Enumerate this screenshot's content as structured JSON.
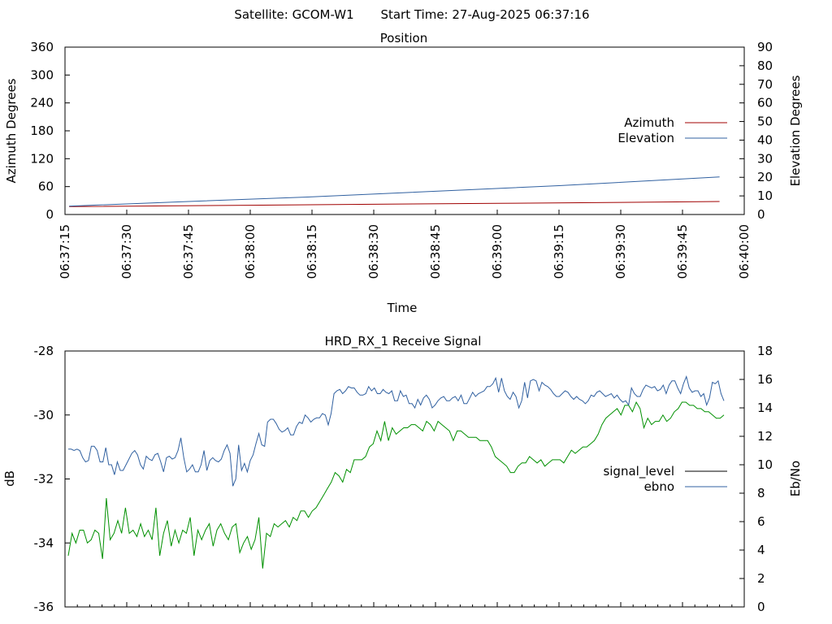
{
  "header": {
    "satellite": "Satellite: GCOM-W1",
    "start_time": "Start Time: 27-Aug-2025 06:37:16"
  },
  "chart_data": [
    {
      "type": "line",
      "title": "Position",
      "xlabel": "Time",
      "ylabel": "Azimuth Degrees",
      "y2label": "Elevation Degrees",
      "xlim": [
        "06:37:15",
        "06:40:00"
      ],
      "ylim": [
        0,
        360
      ],
      "y2lim": [
        0,
        90
      ],
      "xticks": [
        "06:37:15",
        "06:37:30",
        "06:37:45",
        "06:38:00",
        "06:38:15",
        "06:38:30",
        "06:38:45",
        "06:39:00",
        "06:39:15",
        "06:39:30",
        "06:39:45",
        "06:40:00"
      ],
      "yticks": [
        0,
        60,
        120,
        180,
        240,
        300,
        360
      ],
      "y2ticks": [
        0,
        10,
        20,
        30,
        40,
        50,
        60,
        70,
        80,
        90
      ],
      "legend": "center-right",
      "grid": false,
      "series": [
        {
          "name": "Azimuth",
          "axis": "y",
          "color": "#a00000",
          "x": [
            "06:37:16",
            "06:38:00",
            "06:38:30",
            "06:39:00",
            "06:39:30",
            "06:39:54"
          ],
          "values": [
            17,
            20,
            22,
            24,
            26,
            28
          ]
        },
        {
          "name": "Elevation",
          "axis": "y2",
          "color": "#3060a0",
          "x": [
            "06:37:16",
            "06:37:45",
            "06:38:15",
            "06:38:45",
            "06:39:15",
            "06:39:54"
          ],
          "values": [
            4.5,
            7,
            9.5,
            12.5,
            15.5,
            20.2
          ]
        }
      ]
    },
    {
      "type": "line",
      "title": "HRD_RX_1 Receive Signal",
      "ylabel": "dB",
      "y2label": "Eb/No",
      "ylim": [
        -36,
        -28
      ],
      "y2lim": [
        0,
        18
      ],
      "yticks": [
        -36,
        -34,
        -32,
        -30,
        -28
      ],
      "y2ticks": [
        0,
        2,
        4,
        6,
        8,
        10,
        12,
        14,
        16,
        18
      ],
      "legend": "center-right",
      "grid": false,
      "series": [
        {
          "name": "signal_level",
          "axis": "y",
          "color": "#009000",
          "values": [
            -34.4,
            -33.7,
            -34.0,
            -33.6,
            -33.6,
            -34.0,
            -33.9,
            -33.6,
            -33.7,
            -34.5,
            -32.6,
            -33.9,
            -33.7,
            -33.3,
            -33.7,
            -32.9,
            -33.7,
            -33.6,
            -33.8,
            -33.4,
            -33.8,
            -33.6,
            -33.9,
            -32.9,
            -34.4,
            -33.7,
            -33.3,
            -34.1,
            -33.6,
            -34.0,
            -33.6,
            -33.7,
            -33.2,
            -34.4,
            -33.6,
            -33.9,
            -33.6,
            -33.4,
            -34.1,
            -33.6,
            -33.4,
            -33.7,
            -33.9,
            -33.5,
            -33.4,
            -34.3,
            -34.0,
            -33.8,
            -34.2,
            -33.9,
            -33.2,
            -34.8,
            -33.7,
            -33.8,
            -33.4,
            -33.5,
            -33.4,
            -33.3,
            -33.5,
            -33.2,
            -33.3,
            -33.0,
            -33.0,
            -33.2,
            -33.0,
            -32.9,
            -32.7,
            -32.5,
            -32.3,
            -32.1,
            -31.8,
            -31.9,
            -32.1,
            -31.7,
            -31.8,
            -31.4,
            -31.4,
            -31.4,
            -31.3,
            -31.0,
            -30.9,
            -30.5,
            -30.8,
            -30.2,
            -30.8,
            -30.4,
            -30.6,
            -30.5,
            -30.4,
            -30.4,
            -30.3,
            -30.3,
            -30.4,
            -30.5,
            -30.2,
            -30.3,
            -30.5,
            -30.2,
            -30.3,
            -30.4,
            -30.5,
            -30.8,
            -30.5,
            -30.5,
            -30.6,
            -30.7,
            -30.7,
            -30.7,
            -30.8,
            -30.8,
            -30.8,
            -31.0,
            -31.3,
            -31.4,
            -31.5,
            -31.6,
            -31.8,
            -31.8,
            -31.6,
            -31.5,
            -31.5,
            -31.3,
            -31.4,
            -31.5,
            -31.4,
            -31.6,
            -31.5,
            -31.4,
            -31.4,
            -31.4,
            -31.5,
            -31.3,
            -31.1,
            -31.2,
            -31.1,
            -31.0,
            -31.0,
            -30.9,
            -30.8,
            -30.6,
            -30.3,
            -30.1,
            -30.0,
            -29.9,
            -29.8,
            -30.0,
            -29.7,
            -29.7,
            -29.9,
            -29.6,
            -29.8,
            -30.4,
            -30.1,
            -30.3,
            -30.2,
            -30.2,
            -30.0,
            -30.2,
            -30.1,
            -29.9,
            -29.8,
            -29.6,
            -29.6,
            -29.7,
            -29.7,
            -29.8,
            -29.8,
            -29.9,
            -29.9,
            -30.0,
            -30.1,
            -30.1,
            -30.0
          ]
        },
        {
          "name": "ebno",
          "axis": "y2",
          "color": "#3060a0",
          "values": [
            11.1,
            11.1,
            11.0,
            11.1,
            11.0,
            10.5,
            10.2,
            10.3,
            11.3,
            11.3,
            11.0,
            10.2,
            10.2,
            11.2,
            10.0,
            10.0,
            9.3,
            10.2,
            9.6,
            9.6,
            10.0,
            10.4,
            10.8,
            11.0,
            10.7,
            10.0,
            9.7,
            10.6,
            10.4,
            10.3,
            10.7,
            10.8,
            10.2,
            9.5,
            10.5,
            10.6,
            10.4,
            10.5,
            11.0,
            11.9,
            10.5,
            9.5,
            9.7,
            10.0,
            9.5,
            9.5,
            10.0,
            11.0,
            9.6,
            10.3,
            10.5,
            10.3,
            10.2,
            10.4,
            11.0,
            11.4,
            10.8,
            8.5,
            9.0,
            11.4,
            9.6,
            10.1,
            9.5,
            10.3,
            10.7,
            11.5,
            12.2,
            11.4,
            11.3,
            13.0,
            13.2,
            13.2,
            12.9,
            12.5,
            12.3,
            12.4,
            12.6,
            12.1,
            12.1,
            12.7,
            13.0,
            12.9,
            13.5,
            13.3,
            13.0,
            13.2,
            13.3,
            13.3,
            13.6,
            13.5,
            12.8,
            13.6,
            15.0,
            15.2,
            15.3,
            15.0,
            15.2,
            15.5,
            15.4,
            15.4,
            15.1,
            14.9,
            14.9,
            15.0,
            15.5,
            15.2,
            15.4,
            15.0,
            15.0,
            15.3,
            15.1,
            15.0,
            15.2,
            14.5,
            14.5,
            15.2,
            14.8,
            14.9,
            14.3,
            14.3,
            14.0,
            14.6,
            14.2,
            14.7,
            14.9,
            14.6,
            14.0,
            14.2,
            14.5,
            14.7,
            14.8,
            14.5,
            14.5,
            14.7,
            14.8,
            14.5,
            14.9,
            14.3,
            14.3,
            14.7,
            15.1,
            14.8,
            15.0,
            15.1,
            15.2,
            15.5,
            15.5,
            15.7,
            16.1,
            15.1,
            16.1,
            15.2,
            14.8,
            14.6,
            15.1,
            14.8,
            14.0,
            14.5,
            15.8,
            14.7,
            15.9,
            16.0,
            15.9,
            15.2,
            15.8,
            15.6,
            15.5,
            15.3,
            15.0,
            14.8,
            14.8,
            15.0,
            15.2,
            15.1,
            14.8,
            14.6,
            14.8,
            14.6,
            14.5,
            14.3,
            14.5,
            14.9,
            14.8,
            15.1,
            15.2,
            15.0,
            14.8,
            14.9,
            15.0,
            14.7,
            14.9,
            14.6,
            14.4,
            14.5,
            14.2,
            15.4,
            15.0,
            14.8,
            14.8,
            15.3,
            15.6,
            15.5,
            15.4,
            15.5,
            15.2,
            15.3,
            15.6,
            15.0,
            15.6,
            15.9,
            15.9,
            15.4,
            15.0,
            15.7,
            16.2,
            15.4,
            15.1,
            15.2,
            15.2,
            14.8,
            15.0,
            14.2,
            14.7,
            15.8,
            15.7,
            15.9,
            15.0,
            14.5
          ]
        }
      ]
    }
  ]
}
